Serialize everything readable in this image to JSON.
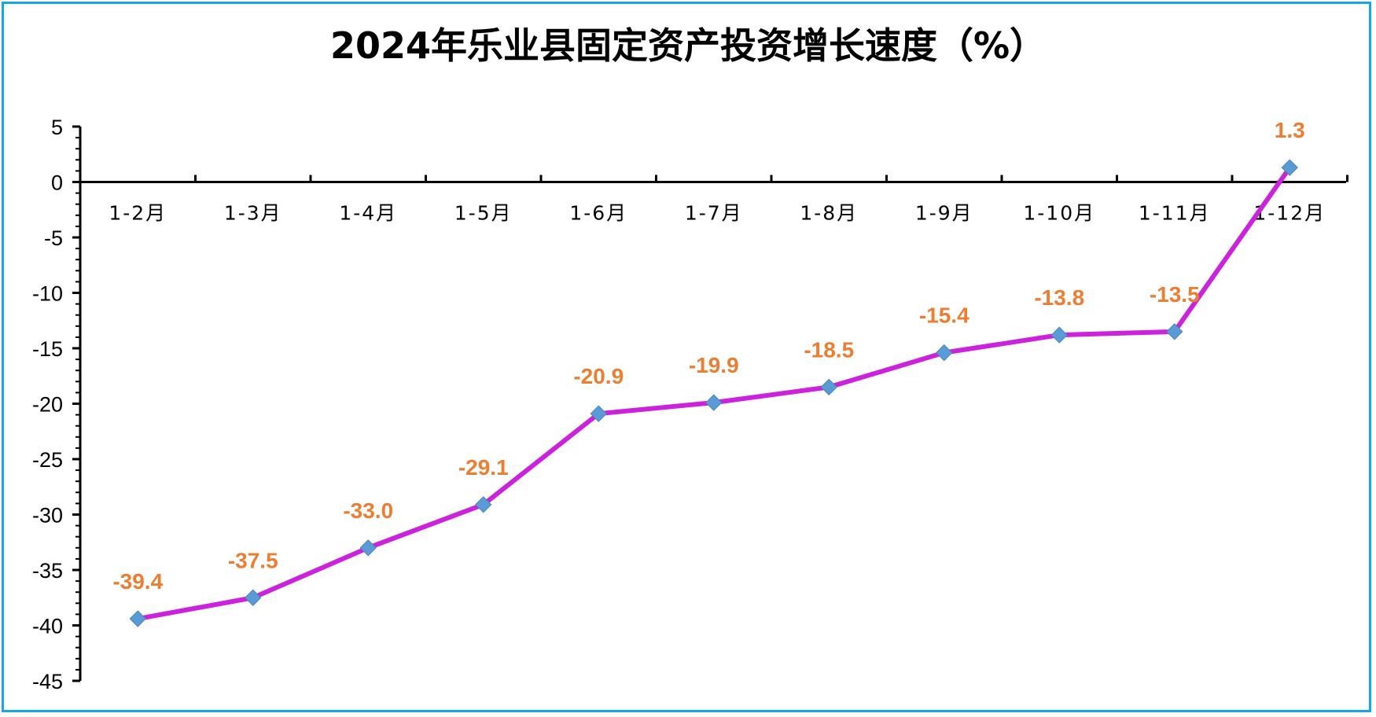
{
  "chart_data": {
    "type": "line",
    "title": "2024年乐业县固定资产投资增长速度（%）",
    "categories": [
      "1-2月",
      "1-3月",
      "1-4月",
      "1-5月",
      "1-6月",
      "1-7月",
      "1-8月",
      "1-9月",
      "1-10月",
      "1-11月",
      "1-12月"
    ],
    "series": [
      {
        "values": [
          -39.4,
          -37.5,
          -33.0,
          -29.1,
          -20.9,
          -19.9,
          -18.5,
          -15.4,
          -13.8,
          -13.5,
          1.3
        ]
      }
    ],
    "data_labels": [
      "-39.4",
      "-37.5",
      "-33.0",
      "-29.1",
      "-20.9",
      "-19.9",
      "-18.5",
      "-15.4",
      "-13.8",
      "-13.5",
      "1.3"
    ],
    "ylim": [
      -45,
      5
    ],
    "y_ticks": [
      5,
      0,
      -5,
      -10,
      -15,
      -20,
      -25,
      -30,
      -35,
      -40,
      -45
    ],
    "xlabel": "",
    "ylabel": "",
    "grid": false,
    "legend": "none",
    "colors": {
      "line": "#cc22dd",
      "marker": "#5b9bd5",
      "data_label": "#ed7d31",
      "frame_border": "#17a6e6",
      "axis": "#000000"
    }
  }
}
